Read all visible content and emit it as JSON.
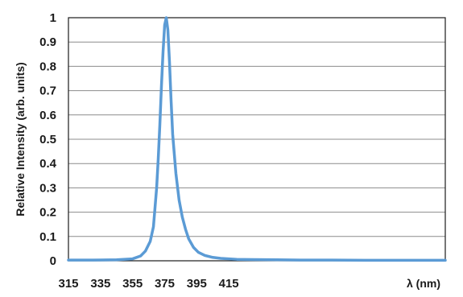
{
  "chart_data": {
    "type": "line",
    "title": "",
    "xlabel": "λ (nm)",
    "ylabel": "Relative Intensity (arb. units)",
    "xlim": [
      315,
      550
    ],
    "ylim": [
      0,
      1
    ],
    "x_ticks": [
      315,
      335,
      355,
      375,
      395,
      415
    ],
    "y_ticks": [
      0,
      0.1,
      0.2,
      0.3,
      0.4,
      0.5,
      0.6,
      0.7,
      0.8,
      0.9,
      1
    ],
    "grid": "horizontal",
    "line_color": "#5b9bd5",
    "series": [
      {
        "x": [
          315,
          330,
          345,
          355,
          360,
          363,
          366,
          368,
          370,
          371,
          372,
          373,
          374,
          375,
          376,
          377,
          378,
          379,
          380,
          382,
          384,
          386,
          388,
          390,
          393,
          396,
          400,
          405,
          410,
          420,
          430,
          445,
          460,
          480,
          500,
          520,
          550
        ],
        "y": [
          0.003,
          0.003,
          0.004,
          0.008,
          0.02,
          0.04,
          0.08,
          0.14,
          0.3,
          0.42,
          0.56,
          0.72,
          0.86,
          0.97,
          1.0,
          0.95,
          0.82,
          0.66,
          0.52,
          0.36,
          0.25,
          0.18,
          0.13,
          0.09,
          0.055,
          0.035,
          0.022,
          0.014,
          0.01,
          0.006,
          0.005,
          0.004,
          0.003,
          0.003,
          0.002,
          0.002,
          0.002
        ]
      }
    ]
  }
}
